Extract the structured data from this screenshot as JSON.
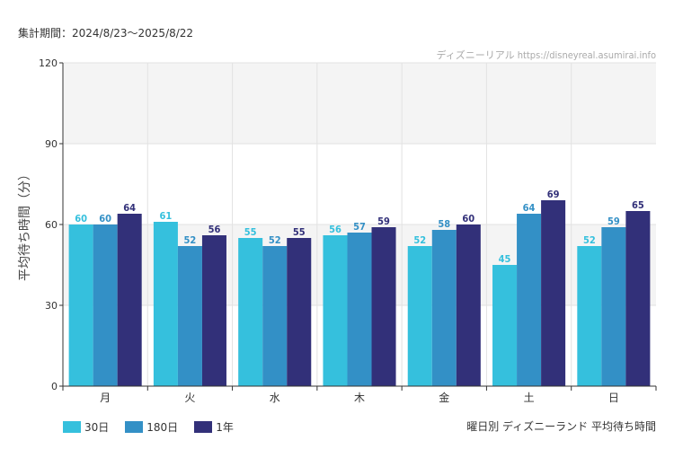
{
  "header": {
    "period": "集計期間：2024/8/23〜2025/8/22",
    "credit": "ディズニーリアル https://disneyreal.asumirai.info"
  },
  "footer": {
    "subtitle": "曜日別 ディズニーランド 平均待ち時間"
  },
  "colors": {
    "30日": "#35c0dd",
    "180日": "#3390c6",
    "1年": "#323079",
    "bandShade": "#f4f4f4",
    "grid": "#e2e2e2",
    "axis": "#333333"
  },
  "chart_data": {
    "type": "bar",
    "categories": [
      "月",
      "火",
      "水",
      "木",
      "金",
      "土",
      "日"
    ],
    "series": [
      {
        "name": "30日",
        "values": [
          60,
          61,
          55,
          56,
          52,
          45,
          52
        ]
      },
      {
        "name": "180日",
        "values": [
          60,
          52,
          52,
          57,
          58,
          64,
          59
        ]
      },
      {
        "name": "1年",
        "values": [
          64,
          56,
          55,
          59,
          60,
          69,
          65
        ]
      }
    ],
    "ylabel": "平均待ち時間（分）",
    "ylim": [
      0,
      120
    ],
    "yticks": [
      0,
      30,
      60,
      90,
      120
    ],
    "grid": true,
    "legend": "bottom-left"
  }
}
